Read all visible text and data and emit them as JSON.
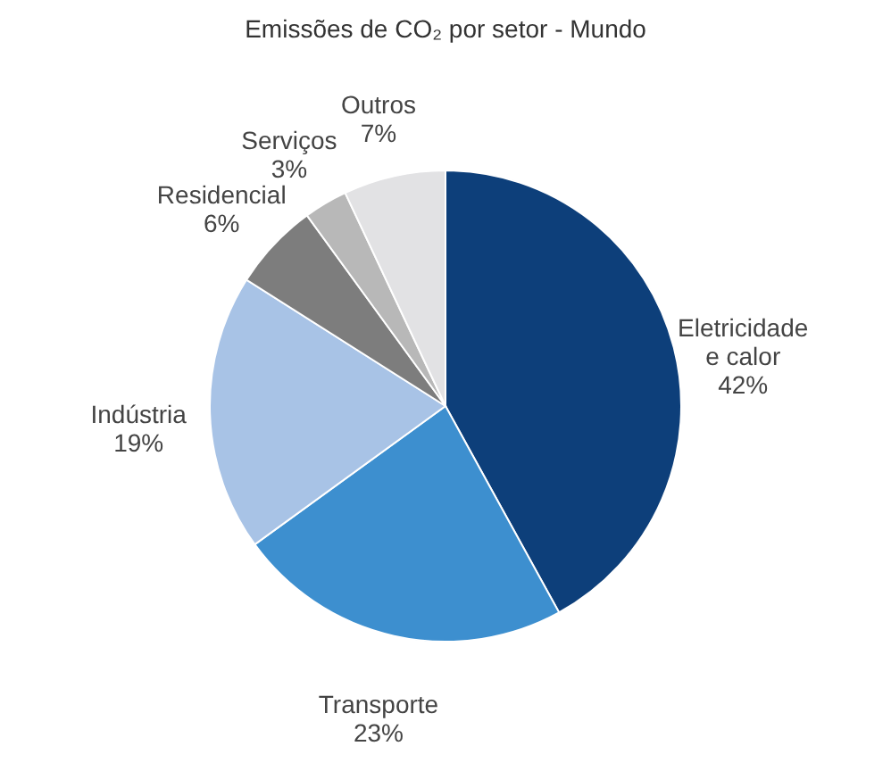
{
  "chart_data": {
    "type": "pie",
    "title": "Emissões de CO₂ por setor - Mundo",
    "categories": [
      "Eletricidade e calor",
      "Transporte",
      "Indústria",
      "Residencial",
      "Serviços",
      "Outros"
    ],
    "values": [
      42,
      23,
      19,
      6,
      3,
      7
    ],
    "value_labels": [
      "42%",
      "23%",
      "19%",
      "6%",
      "3%",
      "7%"
    ],
    "colors": [
      "#0d3f7a",
      "#3d8fcf",
      "#a8c3e6",
      "#7d7d7d",
      "#b8b8b8",
      "#e2e2e4"
    ],
    "legend": false
  }
}
